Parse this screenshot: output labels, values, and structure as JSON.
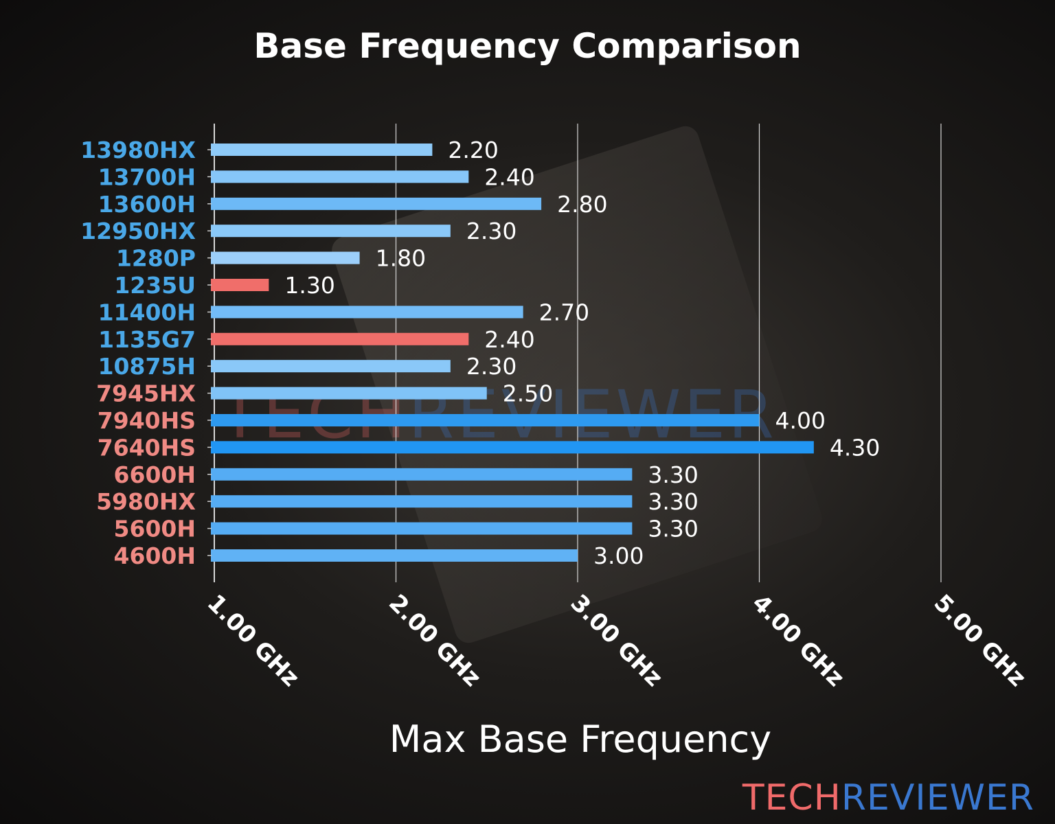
{
  "chart_data": {
    "type": "bar",
    "orientation": "horizontal",
    "title": "Base Frequency Comparison",
    "xlabel": "Max Base Frequency",
    "ylabel": "",
    "xlim": [
      1.0,
      5.0
    ],
    "xticks": [
      1,
      2,
      3,
      4,
      5
    ],
    "xtick_labels": [
      "1.00 GHz",
      "2.00 GHz",
      "3.00 GHz",
      "4.00 GHz",
      "5.00 GHz"
    ],
    "grid": "vertical",
    "categories": [
      "13980HX",
      "13700H",
      "13600H",
      "12950HX",
      "1280P",
      "1235U",
      "11400H",
      "1135G7",
      "10875H",
      "7945HX",
      "7940HS",
      "7640HS",
      "6600H",
      "5980HX",
      "5600H",
      "4600H"
    ],
    "values": [
      2.2,
      2.4,
      2.8,
      2.3,
      1.8,
      1.3,
      2.7,
      2.4,
      2.3,
      2.5,
      4.0,
      4.3,
      3.3,
      3.3,
      3.3,
      3.0
    ],
    "value_labels": [
      "2.20",
      "2.40",
      "2.80",
      "2.30",
      "1.80",
      "1.30",
      "2.70",
      "2.40",
      "2.30",
      "2.50",
      "4.00",
      "4.30",
      "3.30",
      "3.30",
      "3.30",
      "3.00"
    ],
    "bar_colors": [
      "#8ecaf8",
      "#86c6f8",
      "#6db9f6",
      "#8ac8f8",
      "#9ccffa",
      "#f06e6a",
      "#73bcf7",
      "#f06e6a",
      "#8ac8f8",
      "#80c3f7",
      "#2e9af0",
      "#2196f3",
      "#55acf4",
      "#55acf4",
      "#55acf4",
      "#60b2f5"
    ],
    "label_colors": [
      "#4aa8e8",
      "#4aa8e8",
      "#4aa8e8",
      "#4aa8e8",
      "#4aa8e8",
      "#4aa8e8",
      "#4aa8e8",
      "#4aa8e8",
      "#4aa8e8",
      "#f08a84",
      "#f08a84",
      "#f08a84",
      "#f08a84",
      "#f08a84",
      "#f08a84",
      "#f08a84"
    ]
  },
  "logo": {
    "part1": "TECH",
    "part2": "REVIEWER",
    "color1": "#f06a6a",
    "color2": "#3a78d0"
  }
}
